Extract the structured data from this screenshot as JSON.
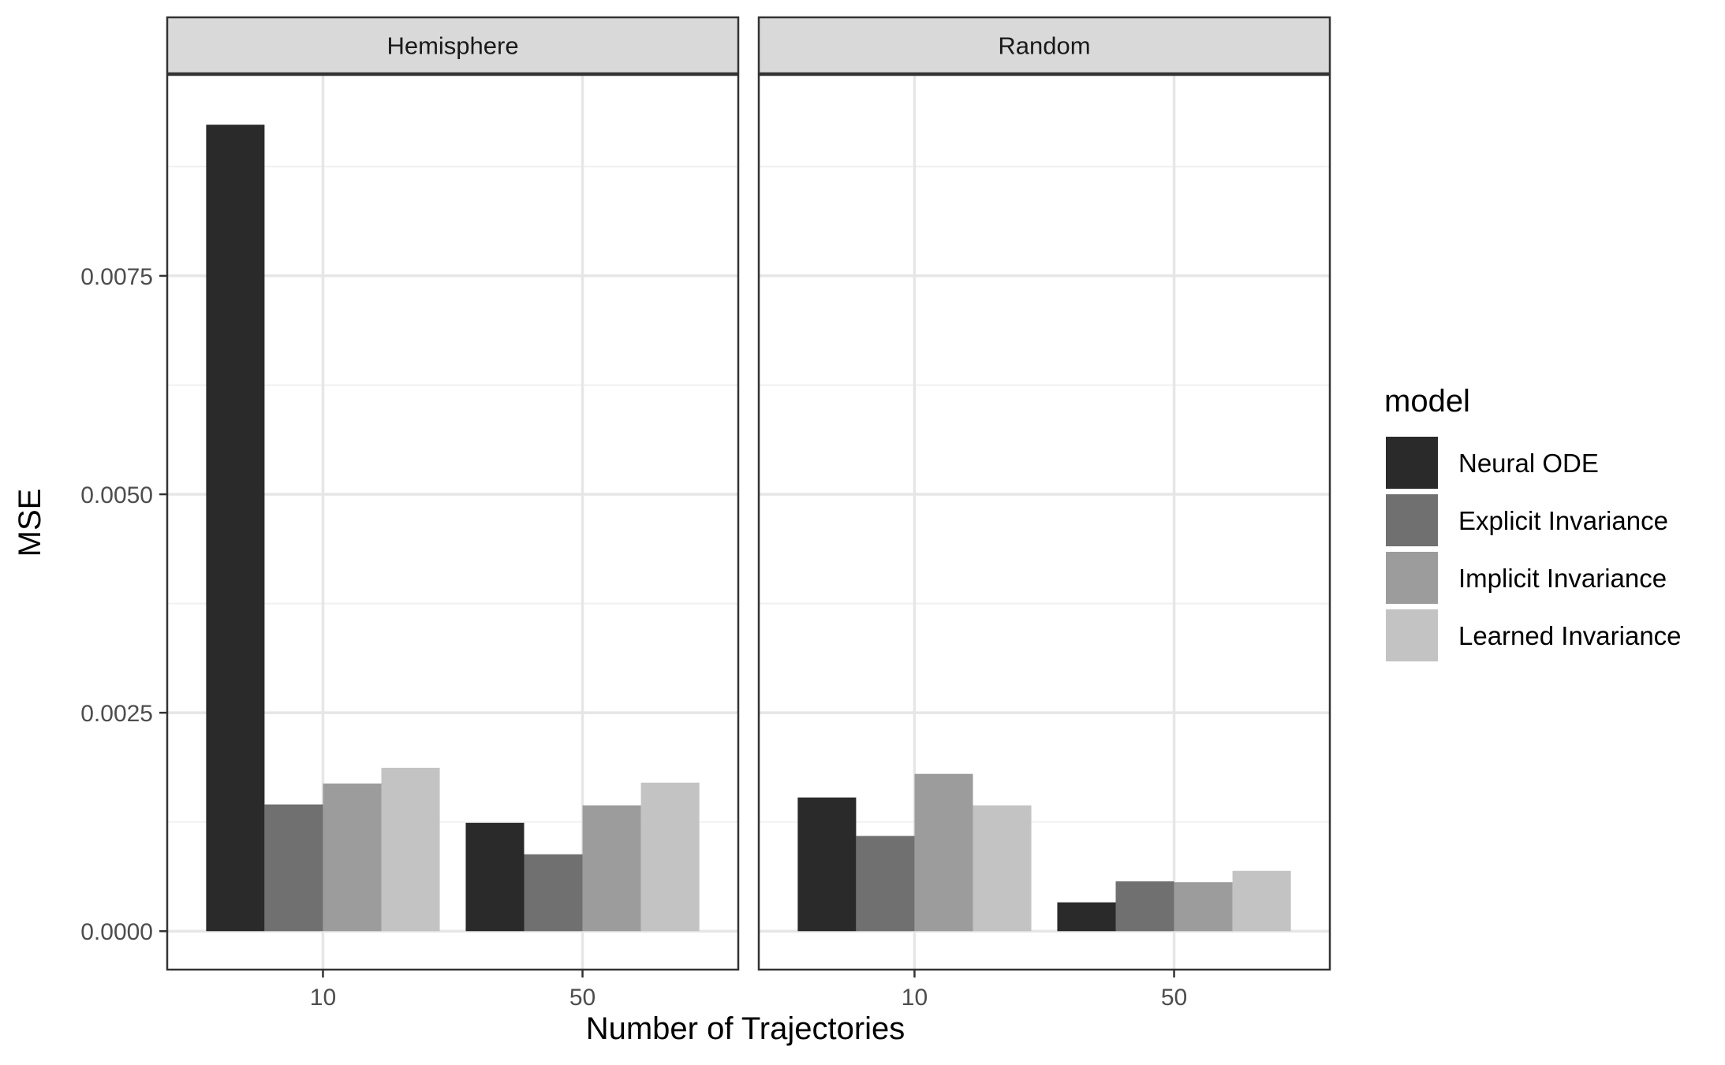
{
  "chart_data": {
    "type": "bar",
    "facets": [
      "Hemisphere",
      "Random"
    ],
    "categories": [
      "10",
      "50"
    ],
    "xlabel": "Number of Trajectories",
    "ylabel": "MSE",
    "ylim": [
      -0.00044,
      0.0098
    ],
    "yticks": [
      "0.0000",
      "0.0025",
      "0.0050",
      "0.0075"
    ],
    "ytick_values": [
      0,
      0.0025,
      0.005,
      0.0075
    ],
    "grid": true,
    "legend": {
      "title": "model",
      "position": "right",
      "entries": [
        "Neural ODE",
        "Explicit Invariance",
        "Implicit Invariance",
        "Learned Invariance"
      ]
    },
    "colors": [
      "#2a2a2a",
      "#707070",
      "#9c9c9c",
      "#c3c3c3"
    ],
    "series": [
      {
        "name": "Neural ODE",
        "facet": "Hemisphere",
        "values": [
          0.00923,
          0.00124
        ]
      },
      {
        "name": "Explicit Invariance",
        "facet": "Hemisphere",
        "values": [
          0.00145,
          0.00088
        ]
      },
      {
        "name": "Implicit Invariance",
        "facet": "Hemisphere",
        "values": [
          0.00169,
          0.00144
        ]
      },
      {
        "name": "Learned Invariance",
        "facet": "Hemisphere",
        "values": [
          0.00187,
          0.0017
        ]
      },
      {
        "name": "Neural ODE",
        "facet": "Random",
        "values": [
          0.00153,
          0.00033
        ]
      },
      {
        "name": "Explicit Invariance",
        "facet": "Random",
        "values": [
          0.00109,
          0.00057
        ]
      },
      {
        "name": "Implicit Invariance",
        "facet": "Random",
        "values": [
          0.0018,
          0.00056
        ]
      },
      {
        "name": "Learned Invariance",
        "facet": "Random",
        "values": [
          0.00144,
          0.00069
        ]
      }
    ]
  }
}
